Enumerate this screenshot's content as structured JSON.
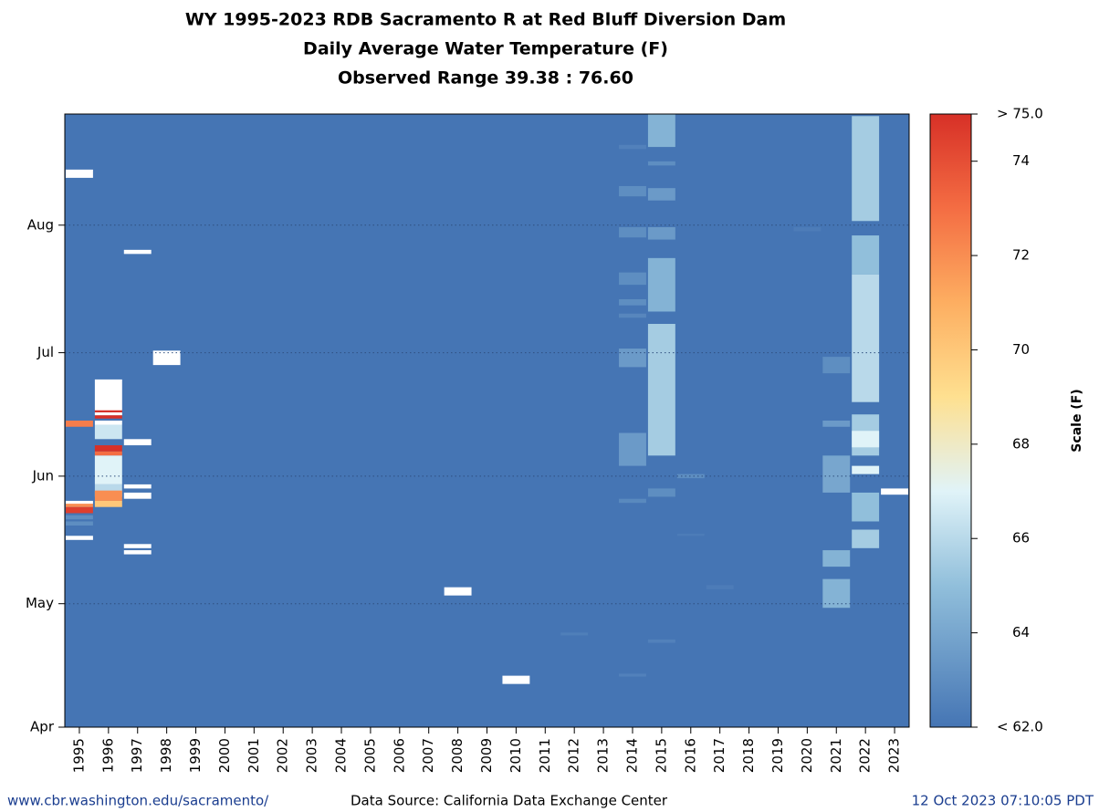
{
  "chart_data": {
    "type": "heatmap",
    "title": [
      "WY 1995-2023 RDB Sacramento R at Red Bluff Diversion Dam",
      "Daily Average Water Temperature (F)",
      "Observed Range 39.38 : 76.60"
    ],
    "categories": [
      "1995",
      "1996",
      "1997",
      "1998",
      "1999",
      "2000",
      "2001",
      "2002",
      "2003",
      "2004",
      "2005",
      "2006",
      "2007",
      "2008",
      "2009",
      "2010",
      "2011",
      "2012",
      "2013",
      "2014",
      "2015",
      "2016",
      "2017",
      "2018",
      "2019",
      "2020",
      "2021",
      "2022",
      "2023"
    ],
    "ylim": [
      0,
      149
    ],
    "yticks": [
      {
        "value": 0,
        "label": "Apr"
      },
      {
        "value": 30,
        "label": "May"
      },
      {
        "value": 61,
        "label": "Jun"
      },
      {
        "value": 91,
        "label": "Jul"
      },
      {
        "value": 122,
        "label": "Aug"
      }
    ],
    "grid": true,
    "colorbar_label": "Scale (F)",
    "clim": [
      62,
      75
    ],
    "cticks": [
      {
        "value": 62,
        "label": "< 62.0"
      },
      64,
      66,
      68,
      70,
      72,
      74,
      {
        "value": 75,
        "label": "> 75.0"
      }
    ],
    "colorscale": [
      {
        "value": 62,
        "color": "#4575b4"
      },
      {
        "value": 65,
        "color": "#91bfdb"
      },
      {
        "value": 67,
        "color": "#e0f3f8"
      },
      {
        "value": 69,
        "color": "#fee090"
      },
      {
        "value": 71,
        "color": "#fdae61"
      },
      {
        "value": 73,
        "color": "#f46d43"
      },
      {
        "value": 75,
        "color": "#d73027"
      }
    ],
    "missing_color": "#ffffff",
    "cells": [
      [
        0,
        73,
        74.5,
        72.5
      ],
      [
        0,
        52,
        53.5,
        74.5
      ],
      [
        0,
        53.5,
        54.5,
        72
      ],
      [
        0,
        49,
        50,
        63
      ],
      [
        0,
        50.5,
        51.5,
        63
      ],
      [
        1,
        75,
        75.8,
        75
      ],
      [
        1,
        76.5,
        77.3,
        75
      ],
      [
        1,
        70,
        73.5,
        66.5
      ],
      [
        1,
        67,
        68.5,
        75
      ],
      [
        1,
        66,
        67,
        73
      ],
      [
        1,
        59,
        66,
        67
      ],
      [
        1,
        56,
        59,
        66
      ],
      [
        1,
        55,
        57.5,
        72
      ],
      [
        1,
        53.5,
        55,
        70
      ],
      [
        17,
        22.3,
        23,
        62.4
      ],
      [
        19,
        140.5,
        141.5,
        62.5
      ],
      [
        19,
        129,
        131.5,
        63
      ],
      [
        19,
        119,
        121.5,
        63
      ],
      [
        19,
        107.5,
        110.5,
        63
      ],
      [
        19,
        102.5,
        104,
        63
      ],
      [
        19,
        99.5,
        100.5,
        62.7
      ],
      [
        19,
        87.5,
        92,
        63.5
      ],
      [
        19,
        63.5,
        71.5,
        63.5
      ],
      [
        19,
        54.5,
        55.5,
        62.8
      ],
      [
        19,
        12.3,
        13,
        62.5
      ],
      [
        20,
        141,
        149,
        64.5
      ],
      [
        20,
        136.5,
        137.5,
        63
      ],
      [
        20,
        128,
        131,
        63.5
      ],
      [
        20,
        118.5,
        121.5,
        63.5
      ],
      [
        20,
        101,
        114,
        64.5
      ],
      [
        20,
        66,
        98,
        65.5
      ],
      [
        20,
        56,
        58,
        63
      ],
      [
        20,
        20.5,
        21.3,
        62.5
      ],
      [
        21,
        60.5,
        61.5,
        63
      ],
      [
        21,
        46.5,
        47,
        62.3
      ],
      [
        22,
        33.5,
        34.5,
        62.3
      ],
      [
        25,
        120.5,
        121.5,
        62.3
      ],
      [
        26,
        86,
        90,
        63
      ],
      [
        26,
        73,
        74.5,
        63.5
      ],
      [
        26,
        57,
        66,
        64
      ],
      [
        26,
        39,
        43,
        64.5
      ],
      [
        26,
        29,
        36,
        64.5
      ],
      [
        27,
        123,
        148.5,
        65.5
      ],
      [
        27,
        110,
        119.5,
        65
      ],
      [
        27,
        79,
        110,
        66
      ],
      [
        27,
        66,
        76,
        65.5
      ],
      [
        27,
        68,
        72,
        67
      ],
      [
        27,
        61.5,
        63.5,
        67
      ],
      [
        27,
        50,
        57,
        65
      ],
      [
        27,
        43.5,
        48,
        65.5
      ]
    ],
    "missing": [
      [
        0,
        133.5,
        135.5
      ],
      [
        0,
        45.5,
        46.5
      ],
      [
        0,
        54.3,
        55
      ],
      [
        1,
        77,
        84.5
      ],
      [
        1,
        75.8,
        76.5
      ],
      [
        1,
        73.5,
        74.5
      ],
      [
        2,
        115,
        116
      ],
      [
        2,
        68.5,
        70
      ],
      [
        2,
        58,
        59
      ],
      [
        2,
        55.5,
        57
      ],
      [
        2,
        43.5,
        44.5
      ],
      [
        2,
        42,
        43
      ],
      [
        3,
        88,
        91.5
      ],
      [
        13,
        32,
        34
      ],
      [
        15,
        10.5,
        12.5
      ],
      [
        28,
        56.5,
        58
      ]
    ],
    "footer": {
      "url": "www.cbr.washington.edu/sacramento/",
      "source": "Data Source: California Data Exchange Center",
      "timestamp": "12 Oct 2023 07:10:05 PDT"
    }
  }
}
